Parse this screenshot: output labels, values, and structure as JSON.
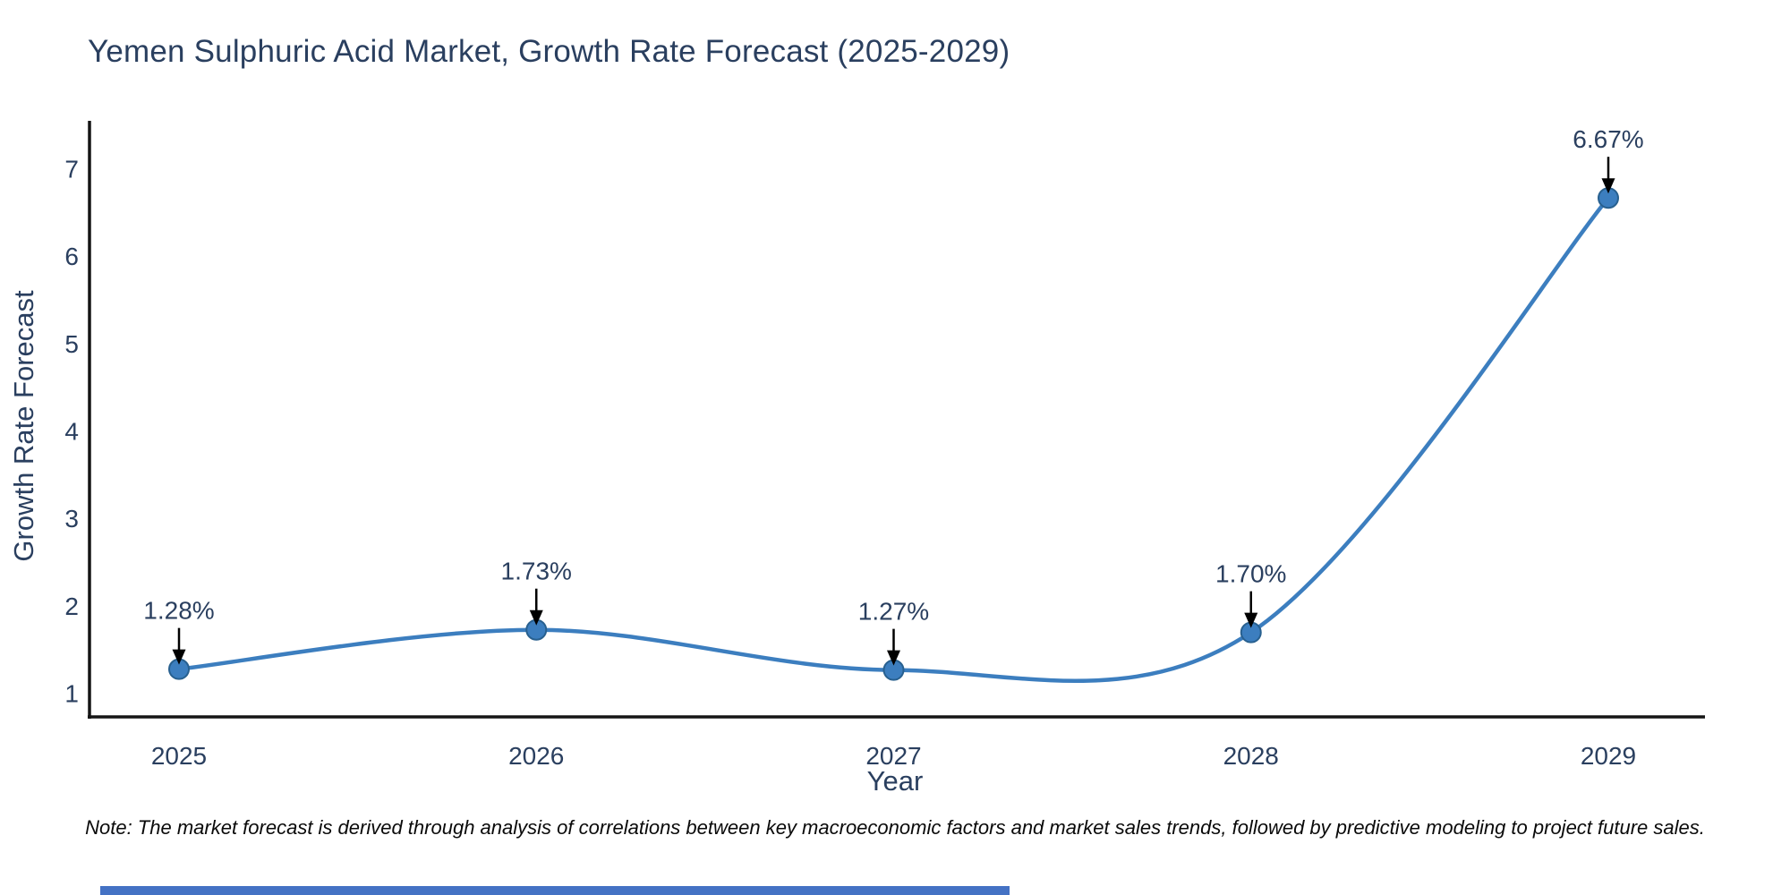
{
  "header": {
    "title": "Yemen Sulphuric Acid Market, Growth Rate Forecast (2025-2029)"
  },
  "chart_data": {
    "type": "line",
    "title": "Yemen Sulphuric Acid Market, Growth Rate Forecast (2025-2029)",
    "categories": [
      "2025",
      "2026",
      "2027",
      "2028",
      "2029"
    ],
    "values": [
      1.28,
      1.73,
      1.27,
      1.7,
      6.67
    ],
    "point_labels": [
      "1.28%",
      "1.73%",
      "1.27%",
      "1.70%",
      "6.67%"
    ],
    "xlabel": "Year",
    "ylabel": "Growth Rate Forecast",
    "ylim": [
      1,
      7
    ],
    "yticks": [
      1,
      2,
      3,
      4,
      5,
      6,
      7
    ],
    "line_shape": "spline",
    "grid": false,
    "legend": "none",
    "colors": {
      "line": "#3C7EBF",
      "marker_fill": "#3C7EBF",
      "marker_stroke": "#28608F",
      "axis": "#151515",
      "tick_text": "#2a3f5f",
      "annotation_text": "#2a3f5f",
      "annotation_arrow": "#000000"
    }
  },
  "footnote": {
    "text": "Note: The market forecast is derived through analysis of correlations between key macroeconomic factors and market sales trends, followed by predictive modeling to project future sales."
  },
  "decor": {
    "bottom_bar_color": "#4472c4"
  }
}
